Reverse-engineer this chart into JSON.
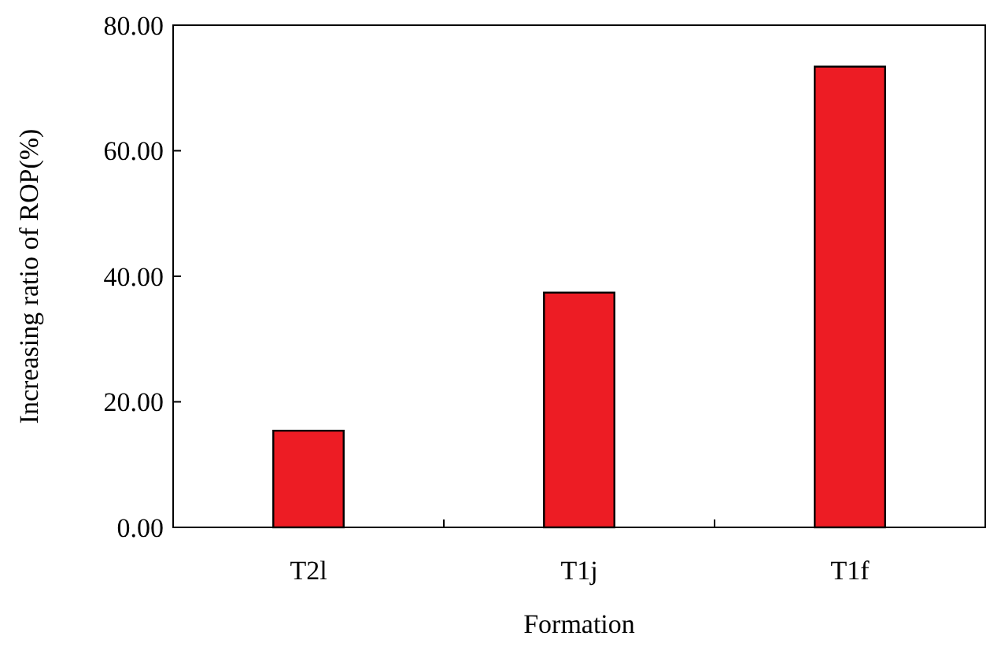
{
  "chart_data": {
    "type": "bar",
    "xlabel": "Formation",
    "ylabel": "Increasing ratio of ROP(%)",
    "categories": [
      "T2l",
      "T1j",
      "T1f"
    ],
    "series": [
      {
        "color": "#ed1c24",
        "values": [
          15.4,
          37.4,
          73.4
        ]
      }
    ],
    "ylim": [
      0,
      80
    ],
    "yticks": [
      {
        "value": 0,
        "label": "0.00"
      },
      {
        "value": 20,
        "label": "20.00"
      },
      {
        "value": 40,
        "label": "40.00"
      },
      {
        "value": 60,
        "label": "60.00"
      },
      {
        "value": 80,
        "label": "80.00"
      }
    ],
    "grid": false
  }
}
